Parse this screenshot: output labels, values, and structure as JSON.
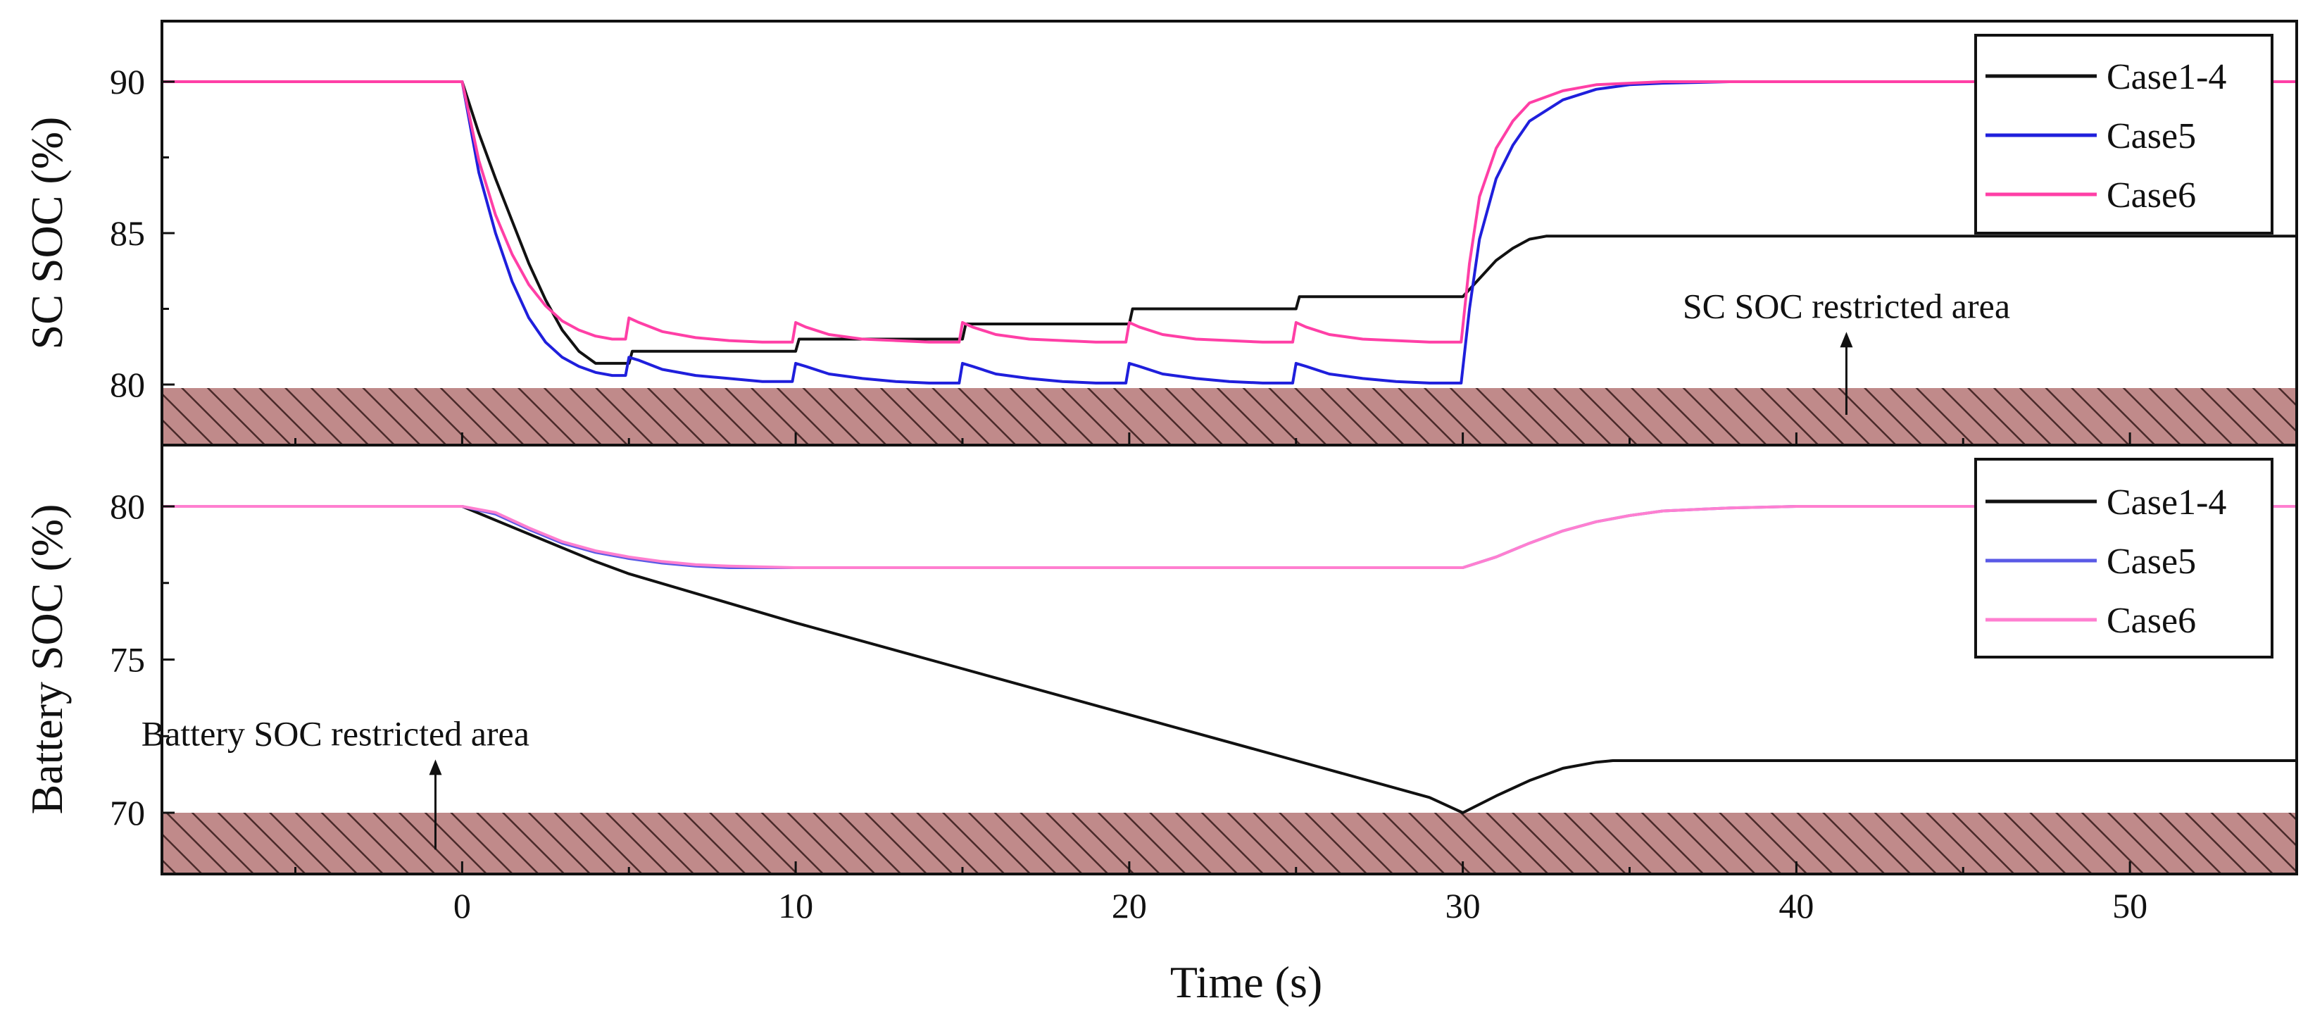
{
  "chart_data": [
    {
      "type": "line",
      "panel": "top",
      "ylabel": "SC SOC (%)",
      "xlim": [
        -9,
        55
      ],
      "ylim": [
        78,
        92
      ],
      "yticks": [
        {
          "value": 80,
          "label": "80"
        },
        {
          "value": 85,
          "label": "85"
        },
        {
          "value": 90,
          "label": "90"
        }
      ],
      "restricted_band": [
        78,
        80
      ],
      "annotation": {
        "text": "SC SOC restricted area",
        "x": 41.5,
        "y": 82.2,
        "arrow_from_y": 79,
        "arrow_to_y": 81.6
      },
      "legend": {
        "position": "top-right",
        "entries": [
          "Case1-4",
          "Case5",
          "Case6"
        ]
      },
      "series": [
        {
          "name": "Case1-4",
          "color": "#111111",
          "x": [
            -9,
            0,
            0.5,
            1,
            1.5,
            2,
            2.5,
            3,
            3.5,
            4,
            5,
            5.1,
            10,
            10.1,
            15,
            15.1,
            20,
            20.1,
            25,
            25.1,
            30,
            30.5,
            31,
            31.5,
            32,
            32.5,
            33,
            55
          ],
          "y": [
            90,
            90,
            88.3,
            86.8,
            85.4,
            84.0,
            82.8,
            81.8,
            81.1,
            80.7,
            80.7,
            81.1,
            81.1,
            81.5,
            81.5,
            82.0,
            82.0,
            82.5,
            82.5,
            82.9,
            82.9,
            83.5,
            84.1,
            84.5,
            84.8,
            84.9,
            84.9,
            84.9
          ]
        },
        {
          "name": "Case5",
          "color": "#1f1fdc",
          "x": [
            -9,
            0,
            0.5,
            1,
            1.5,
            2,
            2.5,
            3,
            3.5,
            4,
            4.5,
            4.9,
            5,
            5.3,
            6,
            7,
            8,
            9,
            9.9,
            10,
            10.3,
            11,
            12,
            13,
            14,
            14.9,
            15,
            15.3,
            16,
            17,
            18,
            19,
            19.9,
            20,
            20.3,
            21,
            22,
            23,
            24,
            24.9,
            25,
            25.3,
            26,
            27,
            28,
            29,
            29.95,
            30.2,
            30.5,
            31,
            31.5,
            32,
            33,
            34,
            35,
            36,
            38,
            40,
            45,
            55
          ],
          "y": [
            90,
            90,
            87.0,
            85.0,
            83.4,
            82.2,
            81.4,
            80.9,
            80.6,
            80.4,
            80.3,
            80.3,
            80.9,
            80.8,
            80.5,
            80.3,
            80.2,
            80.1,
            80.1,
            80.7,
            80.6,
            80.35,
            80.2,
            80.1,
            80.05,
            80.05,
            80.7,
            80.6,
            80.35,
            80.2,
            80.1,
            80.05,
            80.05,
            80.7,
            80.6,
            80.35,
            80.2,
            80.1,
            80.05,
            80.05,
            80.7,
            80.6,
            80.35,
            80.2,
            80.1,
            80.05,
            80.05,
            82.5,
            84.8,
            86.8,
            87.9,
            88.7,
            89.4,
            89.75,
            89.9,
            89.95,
            90.0,
            90.0,
            90.0,
            90.0
          ]
        },
        {
          "name": "Case6",
          "color": "#ff3fa6",
          "x": [
            -9,
            0,
            0.5,
            1,
            1.5,
            2,
            2.5,
            3,
            3.5,
            4,
            4.5,
            4.9,
            5,
            5.3,
            6,
            7,
            8,
            9,
            9.9,
            10,
            10.3,
            11,
            12,
            13,
            14,
            14.9,
            15,
            15.3,
            16,
            17,
            18,
            19,
            19.9,
            20,
            20.3,
            21,
            22,
            23,
            24,
            24.9,
            25,
            25.3,
            26,
            27,
            28,
            29,
            29.95,
            30.2,
            30.5,
            31,
            31.5,
            32,
            33,
            34,
            35,
            36,
            38,
            40,
            45,
            55
          ],
          "y": [
            90,
            90,
            87.4,
            85.6,
            84.3,
            83.3,
            82.6,
            82.1,
            81.8,
            81.6,
            81.5,
            81.5,
            82.2,
            82.05,
            81.75,
            81.55,
            81.45,
            81.4,
            81.4,
            82.05,
            81.9,
            81.65,
            81.5,
            81.45,
            81.4,
            81.4,
            82.05,
            81.9,
            81.65,
            81.5,
            81.45,
            81.4,
            81.4,
            82.05,
            81.9,
            81.65,
            81.5,
            81.45,
            81.4,
            81.4,
            82.05,
            81.9,
            81.65,
            81.5,
            81.45,
            81.4,
            81.4,
            84.0,
            86.2,
            87.8,
            88.7,
            89.3,
            89.7,
            89.9,
            89.95,
            90.0,
            90.0,
            90.0,
            90.0,
            90.0
          ]
        }
      ]
    },
    {
      "type": "line",
      "panel": "bottom",
      "ylabel": "Battery SOC (%)",
      "xlabel": "Time (s)",
      "xlim": [
        -9,
        55
      ],
      "ylim": [
        68,
        82
      ],
      "xticks": [
        {
          "value": 0,
          "label": "0"
        },
        {
          "value": 10,
          "label": "10"
        },
        {
          "value": 20,
          "label": "20"
        },
        {
          "value": 30,
          "label": "30"
        },
        {
          "value": 40,
          "label": "40"
        },
        {
          "value": 50,
          "label": "50"
        }
      ],
      "yticks": [
        {
          "value": 70,
          "label": "70"
        },
        {
          "value": 75,
          "label": "75"
        },
        {
          "value": 80,
          "label": "80"
        }
      ],
      "restricted_band": [
        68,
        70
      ],
      "annotation": {
        "text": "Battery SOC restricted area",
        "x": -3.8,
        "y": 72.2,
        "arrow_from_y": 68.8,
        "arrow_to_y": 71.6
      },
      "legend": {
        "position": "top-right",
        "entries": [
          "Case1-4",
          "Case5",
          "Case6"
        ]
      },
      "series": [
        {
          "name": "Case1-4",
          "color": "#111111",
          "x": [
            -9,
            0,
            2,
            4,
            5,
            10,
            15,
            20,
            25,
            29,
            30,
            31,
            32,
            33,
            34,
            34.5,
            55
          ],
          "y": [
            80,
            80,
            79.1,
            78.2,
            77.8,
            76.2,
            74.7,
            73.2,
            71.7,
            70.5,
            70.0,
            70.55,
            71.05,
            71.45,
            71.65,
            71.7,
            71.7
          ]
        },
        {
          "name": "Case5",
          "color": "#5a5ae6",
          "x": [
            -9,
            0,
            1,
            2,
            3,
            4,
            5,
            6,
            7,
            8,
            10,
            15,
            20,
            25,
            30,
            31,
            32,
            33,
            34,
            35,
            36,
            38,
            40,
            55
          ],
          "y": [
            80,
            80,
            79.75,
            79.25,
            78.8,
            78.5,
            78.3,
            78.15,
            78.05,
            78.0,
            78.0,
            78.0,
            78.0,
            78.0,
            78.0,
            78.35,
            78.8,
            79.2,
            79.5,
            79.7,
            79.85,
            79.95,
            80.0,
            80.0
          ]
        },
        {
          "name": "Case6",
          "color": "#ff7fd0",
          "x": [
            -9,
            0,
            1,
            2,
            3,
            4,
            5,
            6,
            7,
            8,
            10,
            15,
            20,
            25,
            30,
            31,
            32,
            33,
            34,
            35,
            36,
            38,
            40,
            55
          ],
          "y": [
            80,
            80,
            79.8,
            79.3,
            78.85,
            78.55,
            78.35,
            78.2,
            78.1,
            78.05,
            78.0,
            78.0,
            78.0,
            78.0,
            78.0,
            78.35,
            78.8,
            79.2,
            79.5,
            79.7,
            79.85,
            79.95,
            80.0,
            80.0
          ]
        }
      ]
    }
  ]
}
